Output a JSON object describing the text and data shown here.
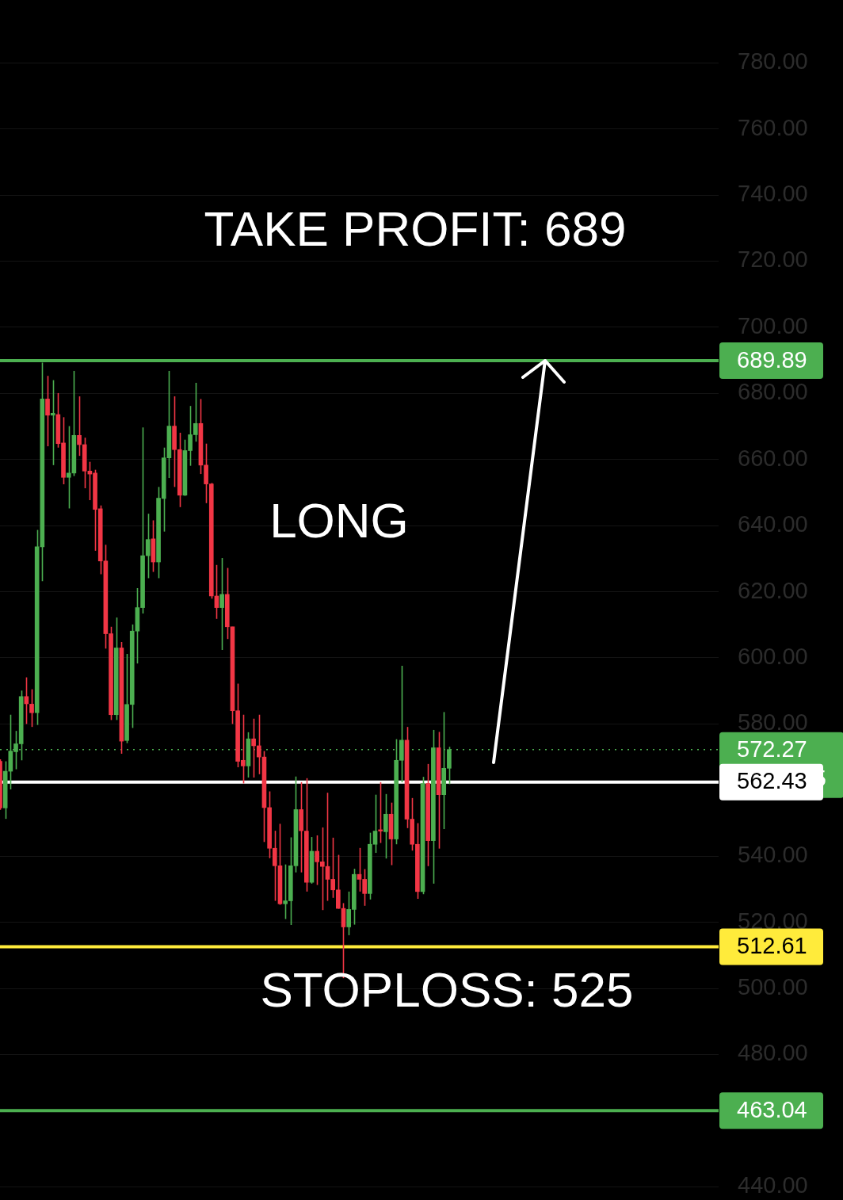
{
  "chart_data": {
    "type": "candlestick",
    "categories": [
      null,
      null,
      null,
      null,
      null,
      null,
      null,
      null,
      null,
      null,
      null,
      null,
      null,
      null,
      null,
      null,
      null,
      null,
      null,
      null,
      null,
      null,
      null,
      null,
      null,
      null,
      null,
      null,
      null,
      null,
      null,
      null,
      null,
      null,
      null,
      null,
      null,
      null,
      null,
      null,
      null,
      null,
      null,
      null,
      null,
      null,
      null,
      null,
      null,
      null,
      null,
      null,
      null,
      null,
      null,
      null,
      null,
      null,
      null,
      null,
      null,
      null,
      null,
      null,
      null,
      null,
      null,
      null,
      null,
      null,
      null,
      null,
      null,
      null,
      null,
      null,
      null,
      null,
      null,
      null,
      null,
      null,
      null,
      null,
      null,
      null,
      null,
      null,
      null,
      null,
      null,
      null,
      null,
      null,
      null,
      null,
      null,
      null,
      null,
      null,
      null,
      null,
      null,
      null,
      null,
      null,
      null,
      null,
      null,
      null,
      null,
      null,
      null,
      null,
      null,
      null,
      null,
      null,
      null,
      null,
      null,
      null,
      null,
      null,
      null,
      null,
      null,
      null,
      null,
      null,
      null,
      null,
      null,
      null,
      null,
      null,
      null
    ],
    "ohlc": [
      [
        568.7,
        569.3,
        554.0,
        554.6
      ],
      [
        554.6,
        568.7,
        551.3,
        565.7
      ],
      [
        565.7,
        582.8,
        560.2,
        571.8
      ],
      [
        571.6,
        577.9,
        566.3,
        574.0
      ],
      [
        574.0,
        590.1,
        569.0,
        588.3
      ],
      [
        588.3,
        594.1,
        580.0,
        586.1
      ],
      [
        586.0,
        590.5,
        579.1,
        583.4
      ],
      [
        583.4,
        638.7,
        579.7,
        633.6
      ],
      [
        633.6,
        689.3,
        623.2,
        678.3
      ],
      [
        678.3,
        685.3,
        664.0,
        673.4
      ],
      [
        673.4,
        684.0,
        658.3,
        674.0
      ],
      [
        673.6,
        680.1,
        663.6,
        664.8
      ],
      [
        665.0,
        672.8,
        652.5,
        654.6
      ],
      [
        654.6,
        670.1,
        645.2,
        655.9
      ],
      [
        655.9,
        686.8,
        655.0,
        667.3
      ],
      [
        667.3,
        679.1,
        661.1,
        664.5
      ],
      [
        664.5,
        666.6,
        651.3,
        656.5
      ],
      [
        656.5,
        659.3,
        647.7,
        655.6
      ],
      [
        655.9,
        656.9,
        632.4,
        644.9
      ],
      [
        645.1,
        646.1,
        625.3,
        629.3
      ],
      [
        629.3,
        634.2,
        602.8,
        607.3
      ],
      [
        607.3,
        609.4,
        581.2,
        582.8
      ],
      [
        582.8,
        612.2,
        581.2,
        603.0
      ],
      [
        603.0,
        604.8,
        571.0,
        574.8
      ],
      [
        575.0,
        601.2,
        574.2,
        585.9
      ],
      [
        585.9,
        610.1,
        578.8,
        608.1
      ],
      [
        608.1,
        621.1,
        598.3,
        615.2
      ],
      [
        615.2,
        669.7,
        613.4,
        630.9
      ],
      [
        630.9,
        643.6,
        624.1,
        635.8
      ],
      [
        636.0,
        641.6,
        626.0,
        629.0
      ],
      [
        629.0,
        651.7,
        624.1,
        648.3
      ],
      [
        648.2,
        663.6,
        638.2,
        660.5
      ],
      [
        660.5,
        686.8,
        654.4,
        670.1
      ],
      [
        670.1,
        679.1,
        651.7,
        663.0
      ],
      [
        663.0,
        668.1,
        645.6,
        649.2
      ],
      [
        649.2,
        666.0,
        649.0,
        662.7
      ],
      [
        662.7,
        676.2,
        658.1,
        667.5
      ],
      [
        667.5,
        683.2,
        665.4,
        670.9
      ],
      [
        670.9,
        678.3,
        655.6,
        658.3
      ],
      [
        658.3,
        664.8,
        646.8,
        652.6
      ],
      [
        652.6,
        652.9,
        617.9,
        618.7
      ],
      [
        618.7,
        628.1,
        611.8,
        615.2
      ],
      [
        615.2,
        630.2,
        602.4,
        619.2
      ],
      [
        619.2,
        627.2,
        605.7,
        609.4
      ],
      [
        609.4,
        609.4,
        580.0,
        584.0
      ],
      [
        584.0,
        592.2,
        566.9,
        568.7
      ],
      [
        569.0,
        582.8,
        562.0,
        567.3
      ],
      [
        567.3,
        577.5,
        563.8,
        575.5
      ],
      [
        575.5,
        581.6,
        563.8,
        573.4
      ],
      [
        573.4,
        582.8,
        564.8,
        570.0
      ],
      [
        570.0,
        571.8,
        544.3,
        554.7
      ],
      [
        554.7,
        559.6,
        539.4,
        542.4
      ],
      [
        542.4,
        547.7,
        526.5,
        537.1
      ],
      [
        537.1,
        549.8,
        525.3,
        525.6
      ],
      [
        525.6,
        537.5,
        521.0,
        526.5
      ],
      [
        526.5,
        545.7,
        519.2,
        537.1
      ],
      [
        537.1,
        564.1,
        535.1,
        554.1
      ],
      [
        554.1,
        562.4,
        535.1,
        547.7
      ],
      [
        547.6,
        563.6,
        529.3,
        532.1
      ],
      [
        532.1,
        545.8,
        531.7,
        541.5
      ],
      [
        541.5,
        546.3,
        531.3,
        538.3
      ],
      [
        538.3,
        548.7,
        523.7,
        536.9
      ],
      [
        536.9,
        559.2,
        526.5,
        533.0
      ],
      [
        533.0,
        545.6,
        527.4,
        529.8
      ],
      [
        529.8,
        540.4,
        524.1,
        524.2
      ],
      [
        524.2,
        525.8,
        503.1,
        518.6
      ],
      [
        518.6,
        529.3,
        516.1,
        523.9
      ],
      [
        523.9,
        536.2,
        519.3,
        534.5
      ],
      [
        534.5,
        542.5,
        529.3,
        533.0
      ],
      [
        533.0,
        536.1,
        525.0,
        528.7
      ],
      [
        528.7,
        547.1,
        526.9,
        543.6
      ],
      [
        543.6,
        558.6,
        541.0,
        547.6
      ],
      [
        548.0,
        562.4,
        544.0,
        547.6
      ],
      [
        547.4,
        558.8,
        539.3,
        552.7
      ],
      [
        552.7,
        556.2,
        537.3,
        545.2
      ],
      [
        545.2,
        575.4,
        543.6,
        569.0
      ],
      [
        569.0,
        597.6,
        562.4,
        575.1
      ],
      [
        575.1,
        579.1,
        548.5,
        551.2
      ],
      [
        551.2,
        557.6,
        541.7,
        543.6
      ],
      [
        543.6,
        550.0,
        527.1,
        529.3
      ],
      [
        529.3,
        564.0,
        528.5,
        562.0
      ],
      [
        562.0,
        567.9,
        537.0,
        544.7
      ],
      [
        544.7,
        578.2,
        531.7,
        572.8
      ],
      [
        572.8,
        577.6,
        542.3,
        558.6
      ],
      [
        558.6,
        583.6,
        548.2,
        566.6
      ],
      [
        566.6,
        573.1,
        561.8,
        572.27
      ],
      null,
      null,
      null,
      null,
      null,
      null,
      null,
      null,
      null,
      null,
      null,
      null,
      null,
      null,
      null,
      null,
      null,
      null,
      null,
      null,
      null,
      null,
      null,
      null,
      null,
      null,
      null,
      null,
      null,
      null,
      null,
      null,
      null,
      null,
      null,
      null,
      null,
      null,
      null,
      null,
      null,
      null,
      null,
      null,
      null,
      null,
      null,
      null,
      null,
      null,
      null
    ],
    "colors": [
      "#f23645",
      "#4caf50",
      "#4caf50",
      "#4caf50",
      "#4caf50",
      "#f23645",
      "#f23645",
      "#4caf50",
      "#4caf50",
      "#f23645",
      "#4caf50",
      "#f23645",
      "#f23645",
      "#4caf50",
      "#4caf50",
      "#f23645",
      "#f23645",
      "#f23645",
      "#f23645",
      "#f23645",
      "#f23645",
      "#f23645",
      "#4caf50",
      "#f23645",
      "#4caf50",
      "#4caf50",
      "#4caf50",
      "#4caf50",
      "#4caf50",
      "#f23645",
      "#4caf50",
      "#4caf50",
      "#4caf50",
      "#f23645",
      "#f23645",
      "#4caf50",
      "#4caf50",
      "#4caf50",
      "#f23645",
      "#f23645",
      "#f23645",
      "#f23645",
      "#4caf50",
      "#f23645",
      "#f23645",
      "#f23645",
      "#f23645",
      "#4caf50",
      "#f23645",
      "#f23645",
      "#f23645",
      "#f23645",
      "#f23645",
      "#f23645",
      "#4caf50",
      "#4caf50",
      "#4caf50",
      "#f23645",
      "#f23645",
      "#4caf50",
      "#f23645",
      "#f23645",
      "#f23645",
      "#f23645",
      "#f23645",
      "#f23645",
      "#4caf50",
      "#4caf50",
      "#f23645",
      "#f23645",
      "#4caf50",
      "#4caf50",
      "#f23645",
      "#4caf50",
      "#f23645",
      "#4caf50",
      "#4caf50",
      "#f23645",
      "#f23645",
      "#f23645",
      "#4caf50",
      "#f23645",
      "#4caf50",
      "#f23645",
      "#4caf50",
      "#4caf50",
      null,
      null,
      null,
      null,
      null,
      null,
      null,
      null,
      null,
      null,
      null,
      null,
      null,
      null,
      null,
      null,
      null,
      null,
      null,
      null,
      null,
      null,
      null,
      null,
      null,
      null,
      null,
      null,
      null,
      null,
      null,
      null,
      null,
      null,
      null,
      null,
      null,
      null,
      null,
      null,
      null,
      null,
      null,
      null,
      null,
      null,
      null,
      null,
      null,
      null,
      null
    ],
    "ylim": [
      436,
      799
    ],
    "yticks": [
      {
        "value": 440,
        "label": "440.00"
      },
      {
        "value": 480,
        "label": "480.00"
      },
      {
        "value": 500,
        "label": "500.00"
      },
      {
        "value": 520,
        "label": "520.00"
      },
      {
        "value": 540,
        "label": "540.00"
      },
      {
        "value": 580,
        "label": "580.00"
      },
      {
        "value": 600,
        "label": "600.00"
      },
      {
        "value": 620,
        "label": "620.00"
      },
      {
        "value": 640,
        "label": "640.00"
      },
      {
        "value": 660,
        "label": "660.00"
      },
      {
        "value": 680,
        "label": "680.00"
      },
      {
        "value": 700,
        "label": "700.00"
      },
      {
        "value": 720,
        "label": "720.00"
      },
      {
        "value": 740,
        "label": "740.00"
      },
      {
        "value": 760,
        "label": "760.00"
      },
      {
        "value": 780,
        "label": "780.00"
      }
    ],
    "grid": "y",
    "tick_labels": "y",
    "legend": false,
    "ref_lines": [
      {
        "axis": "y",
        "value": 689.89,
        "label": "689.89",
        "color": "#4caf50",
        "line_style": "solid"
      },
      {
        "axis": "y",
        "value": 572.27,
        "label": "572.27\n03:17:45",
        "color": "#4caf50",
        "line_style": "dotted"
      },
      {
        "axis": "y",
        "value": 562.43,
        "label": "562.43",
        "color": "#ffffff",
        "line_style": "solid"
      },
      {
        "axis": "y",
        "value": 512.61,
        "label": "512.61",
        "color": "#ffeb3b",
        "line_style": "solid"
      },
      {
        "axis": "y",
        "value": 463.04,
        "label": "463.04",
        "color": "#4caf50",
        "line_style": "solid"
      }
    ],
    "annotations": [
      "TAKE PROFIT: 689",
      "LONG",
      "STOPLOSS: 525"
    ]
  }
}
